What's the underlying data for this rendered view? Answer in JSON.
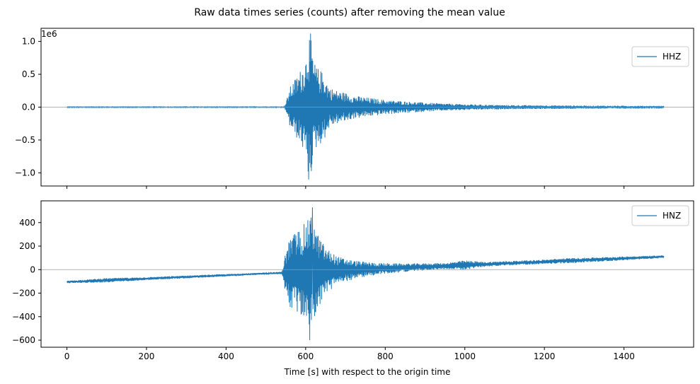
{
  "figure": {
    "title": "Raw data times series (counts) after removing the mean value"
  },
  "colors": {
    "series": "#1f77b4",
    "zero_line": "#999999",
    "axes": "#000000",
    "legend_border": "#cccccc"
  },
  "chart_data": [
    {
      "type": "line",
      "name": "top-panel",
      "xlim": [
        -65,
        1575
      ],
      "ylim": [
        -1200000,
        1200000
      ],
      "xticks": [
        0,
        200,
        400,
        600,
        800,
        1000,
        1200,
        1400
      ],
      "yticks": [
        -1000000,
        -500000,
        0,
        500000,
        1000000
      ],
      "ytick_labels": [
        "−1.0",
        "−0.5",
        "0.0",
        "0.5",
        "1.0"
      ],
      "offset_text": "1e6",
      "xlabel": "",
      "ylabel": "",
      "grid": false,
      "zero_line": true,
      "legend_position": "top-right",
      "series": [
        {
          "name": "HHZ",
          "envelope": {
            "description_points_t": [
              0,
              545,
              550,
              560,
              575,
              590,
              600,
              605,
              612,
              620,
              630,
              645,
              660,
              680,
              700,
              720,
              750,
              800,
              850,
              900,
              950,
              1000,
              1050,
              1100,
              1200,
              1300,
              1400,
              1500
            ],
            "amplitude": [
              5000,
              5000,
              60000,
              300000,
              450000,
              600000,
              750000,
              1050000,
              1120000,
              700000,
              600000,
              520000,
              300000,
              250000,
              220000,
              180000,
              150000,
              110000,
              90000,
              70000,
              55000,
              45000,
              38000,
              32000,
              28000,
              24000,
              22000,
              20000
            ]
          },
          "peak_max": 1120000,
          "peak_min": -1100000
        }
      ]
    },
    {
      "type": "line",
      "name": "bottom-panel",
      "xlim": [
        -65,
        1575
      ],
      "ylim": [
        -660,
        585
      ],
      "xticks": [
        0,
        200,
        400,
        600,
        800,
        1000,
        1200,
        1400
      ],
      "xtick_labels": [
        "0",
        "200",
        "400",
        "600",
        "800",
        "1000",
        "1200",
        "1400"
      ],
      "yticks": [
        -600,
        -400,
        -200,
        0,
        200,
        400
      ],
      "ytick_labels": [
        "−600",
        "−400",
        "−200",
        "0",
        "200",
        "400"
      ],
      "xlabel": "Time [s] with respect to the origin time",
      "ylabel": "",
      "grid": false,
      "zero_line": true,
      "legend_position": "top-right",
      "series": [
        {
          "name": "HNZ",
          "trend": {
            "start": [
              0,
              -105
            ],
            "end": [
              1500,
              110
            ]
          },
          "envelope": {
            "description_points_t": [
              0,
              100,
              200,
              300,
              400,
              500,
              540,
              548,
              560,
              580,
              600,
              615,
              630,
              650,
              680,
              720,
              780,
              850,
              950,
              1000,
              1050,
              1200,
              1250,
              1500
            ],
            "amplitude": [
              10,
              18,
              12,
              12,
              10,
              8,
              10,
              150,
              300,
              360,
              420,
              480,
              320,
              200,
              120,
              80,
              50,
              35,
              25,
              40,
              20,
              18,
              22,
              12
            ]
          },
          "peak_max": 530,
          "peak_min": -600
        }
      ]
    }
  ]
}
